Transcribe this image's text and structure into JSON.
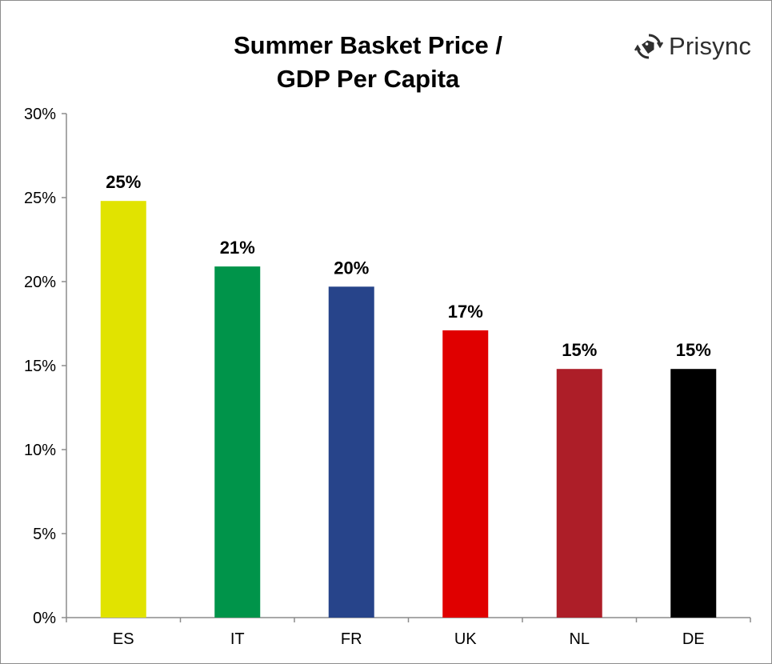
{
  "chart_data": {
    "type": "bar",
    "title": [
      "Summer Basket Price /",
      "GDP Per Capita"
    ],
    "categories": [
      "ES",
      "IT",
      "FR",
      "UK",
      "NL",
      "DE"
    ],
    "values": [
      24.8,
      20.9,
      19.7,
      17.1,
      14.8,
      14.8
    ],
    "data_labels": [
      "25%",
      "21%",
      "20%",
      "17%",
      "15%",
      "15%"
    ],
    "colors": [
      "#e1e300",
      "#00944a",
      "#27448a",
      "#e00000",
      "#ad1e28",
      "#000000"
    ],
    "yticks": [
      0,
      5,
      10,
      15,
      20,
      25,
      30
    ],
    "ytick_labels": [
      "0%",
      "5%",
      "10%",
      "15%",
      "20%",
      "25%",
      "30%"
    ],
    "ylim": [
      0,
      30
    ],
    "grid": false,
    "legend": false
  },
  "logo": {
    "text": "Prisync",
    "icon": "price-tag-sync-icon"
  }
}
